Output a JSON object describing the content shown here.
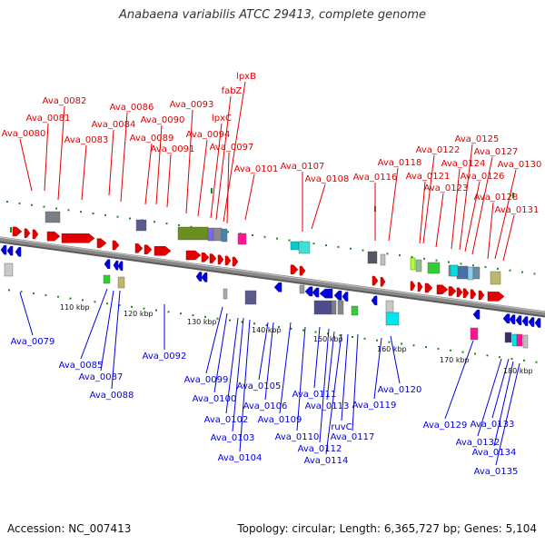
{
  "title": "Anabaena variabilis ATCC 29413, complete genome",
  "footer": {
    "accession": "Accession: NC_007413",
    "meta": "Topology: circular; Length: 6,365,727 bp; Genes: 5,104"
  },
  "colors": {
    "forward": "#e00000",
    "reverse": "#0000e0",
    "backbone": "#8a8a8a",
    "tick": "#1a8a1a"
  },
  "kbp_ticks": [
    "110 kbp",
    "120 kbp",
    "130 kbp",
    "140 kbp",
    "150 kbp",
    "160 kbp",
    "170 kbp",
    "180 kbp"
  ],
  "forward_genes": [
    "Ava_0080",
    "Ava_0081",
    "Ava_0082",
    "Ava_0083",
    "Ava_0084",
    "Ava_0086",
    "Ava_0089",
    "Ava_0090",
    "Ava_0091",
    "Ava_0093",
    "Ava_0094",
    "lpxC",
    "fabZ",
    "lpxB",
    "Ava_0097",
    "Ava_0101",
    "Ava_0107",
    "Ava_0108",
    "Ava_0116",
    "Ava_0118",
    "Ava_0121",
    "Ava_0122",
    "Ava_0123",
    "Ava_0124",
    "Ava_0125",
    "Ava_0126",
    "Ava_0127",
    "Ava_0128",
    "Ava_0130",
    "Ava_0131"
  ],
  "reverse_genes": [
    "Ava_0079",
    "Ava_0085",
    "Ava_0087",
    "Ava_0088",
    "Ava_0092",
    "Ava_0099",
    "Ava_0100",
    "Ava_0102",
    "Ava_0103",
    "Ava_0104",
    "Ava_0105",
    "Ava_0106",
    "Ava_0109",
    "Ava_0110",
    "Ava_0111",
    "Ava_0112",
    "Ava_0113",
    "Ava_0114",
    "ruvC",
    "Ava_0117",
    "Ava_0119",
    "Ava_0120",
    "Ava_0129",
    "Ava_0132",
    "Ava_0133",
    "Ava_0134",
    "Ava_0135"
  ]
}
